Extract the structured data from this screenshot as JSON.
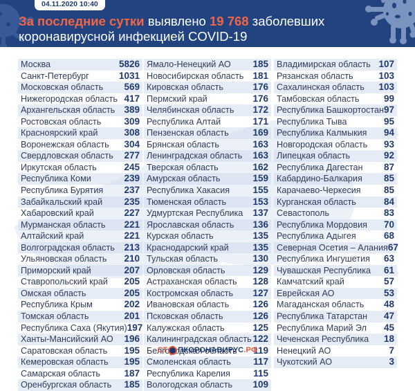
{
  "header": {
    "date": "04.11.2020 10:40",
    "headline_prefix_highlight": "За последние сутки",
    "headline_mid": " выявлено ",
    "headline_number": "19 768",
    "headline_suffix": " заболевших",
    "headline_line2": "коронавирусной инфекцией COVID-19"
  },
  "colors": {
    "header_bg": "#21437f",
    "highlight": "#f06645",
    "value_text": "#1e3a73",
    "name_text": "#2e3c5a",
    "stripe": "#d2dcee"
  },
  "columns": [
    [
      {
        "name": "Москва",
        "value": "5826"
      },
      {
        "name": "Санкт-Петербург",
        "value": "1031"
      },
      {
        "name": "Московская область",
        "value": "569"
      },
      {
        "name": "Нижегородская область",
        "value": "417"
      },
      {
        "name": "Архангельская область",
        "value": "389"
      },
      {
        "name": "Ростовская область",
        "value": "309"
      },
      {
        "name": "Красноярский край",
        "value": "308"
      },
      {
        "name": "Воронежская область",
        "value": "304"
      },
      {
        "name": "Свердловская область",
        "value": "277"
      },
      {
        "name": "Иркутская область",
        "value": "245"
      },
      {
        "name": "Республика Коми",
        "value": "239"
      },
      {
        "name": "Республика Бурятия",
        "value": "237"
      },
      {
        "name": "Забайкальский край",
        "value": "235"
      },
      {
        "name": "Хабаровский край",
        "value": "227"
      },
      {
        "name": "Мурманская область",
        "value": "221"
      },
      {
        "name": "Алтайский край",
        "value": "221"
      },
      {
        "name": "Волгоградская область",
        "value": "213"
      },
      {
        "name": "Ульяновская область",
        "value": "210"
      },
      {
        "name": "Приморский край",
        "value": "207"
      },
      {
        "name": "Ставропольский край",
        "value": "205"
      },
      {
        "name": "Омская область",
        "value": "205"
      },
      {
        "name": "Республика Крым",
        "value": "202"
      },
      {
        "name": "Томская область",
        "value": "201"
      },
      {
        "name": "Республика Саха (Якутия)",
        "value": "197"
      },
      {
        "name": "Ханты-Мансийский АО",
        "value": "196"
      },
      {
        "name": "Саратовская область",
        "value": "195"
      },
      {
        "name": "Кемеровская область",
        "value": "195"
      },
      {
        "name": "Самарская область",
        "value": "187"
      },
      {
        "name": "Оренбургская область",
        "value": "185"
      }
    ],
    [
      {
        "name": "Ямало-Ненецкий АО",
        "value": "185"
      },
      {
        "name": "Новосибирская область",
        "value": "181"
      },
      {
        "name": "Кировская область",
        "value": "176"
      },
      {
        "name": "Пермский край",
        "value": "176"
      },
      {
        "name": "Челябинская область",
        "value": "172"
      },
      {
        "name": "Республика Алтай",
        "value": "171"
      },
      {
        "name": "Пензенская область",
        "value": "169"
      },
      {
        "name": "Брянская область",
        "value": "163"
      },
      {
        "name": "Ленинградская область",
        "value": "163"
      },
      {
        "name": "Тверская область",
        "value": "162"
      },
      {
        "name": "Амурская область",
        "value": "159"
      },
      {
        "name": "Республика Хакасия",
        "value": "155"
      },
      {
        "name": "Тюменская область",
        "value": "153"
      },
      {
        "name": "Удмуртская Республика",
        "value": "137"
      },
      {
        "name": "Ярославская область",
        "value": "136"
      },
      {
        "name": "Курская область",
        "value": "135"
      },
      {
        "name": "Краснодарский край",
        "value": "135"
      },
      {
        "name": "Тульская область",
        "value": "130"
      },
      {
        "name": "Орловская область",
        "value": "129"
      },
      {
        "name": "Астраханская область",
        "value": "128"
      },
      {
        "name": "Костромская область",
        "value": "127"
      },
      {
        "name": "Ивановская область",
        "value": "126"
      },
      {
        "name": "Псковская область",
        "value": "126"
      },
      {
        "name": "Калужская область",
        "value": "125"
      },
      {
        "name": "Калининградская область",
        "value": "122"
      },
      {
        "name": "Белгородская область",
        "value": "119"
      },
      {
        "name": "Смоленская область",
        "value": "117"
      },
      {
        "name": "Республика Карелия",
        "value": "115"
      },
      {
        "name": "Вологодская область",
        "value": "109"
      }
    ],
    [
      {
        "name": "Владимирская область",
        "value": "107"
      },
      {
        "name": "Рязанская область",
        "value": "103"
      },
      {
        "name": "Сахалинская область",
        "value": "103"
      },
      {
        "name": "Тамбовская область",
        "value": "99"
      },
      {
        "name": "Республика Башкортостан",
        "value": "97"
      },
      {
        "name": "Республика Тыва",
        "value": "95"
      },
      {
        "name": "Республика Калмыкия",
        "value": "94"
      },
      {
        "name": "Новгородская область",
        "value": "93"
      },
      {
        "name": "Липецкая область",
        "value": "92"
      },
      {
        "name": "Республика Дагестан",
        "value": "87"
      },
      {
        "name": "Кабардино-Балкария",
        "value": "85"
      },
      {
        "name": "Карачаево-Черкесия",
        "value": "85"
      },
      {
        "name": "Курганская область",
        "value": "84"
      },
      {
        "name": "Севастополь",
        "value": "83"
      },
      {
        "name": "Республика Мордовия",
        "value": "70"
      },
      {
        "name": "Республика Адыгея",
        "value": "68"
      },
      {
        "name": "Северная Осетия – Алания",
        "value": "67"
      },
      {
        "name": "Республика Ингушетия",
        "value": "63"
      },
      {
        "name": "Чувашская Республика",
        "value": "61"
      },
      {
        "name": "Камчатский край",
        "value": "57"
      },
      {
        "name": "Еврейская АО",
        "value": "53"
      },
      {
        "name": "Магаданская область",
        "value": "48"
      },
      {
        "name": "Республика Татарстан",
        "value": "47"
      },
      {
        "name": "Республика Марий Эл",
        "value": "45"
      },
      {
        "name": "Чеченская Республика",
        "value": "18"
      },
      {
        "name": "Ненецкий АО",
        "value": "7"
      },
      {
        "name": "Чукотский АО",
        "value": "3"
      }
    ]
  ],
  "footer": {
    "logo_left": "СТ",
    "logo_mid": "ПКОРОНАВИРУС",
    "logo_right": ".РФ"
  }
}
